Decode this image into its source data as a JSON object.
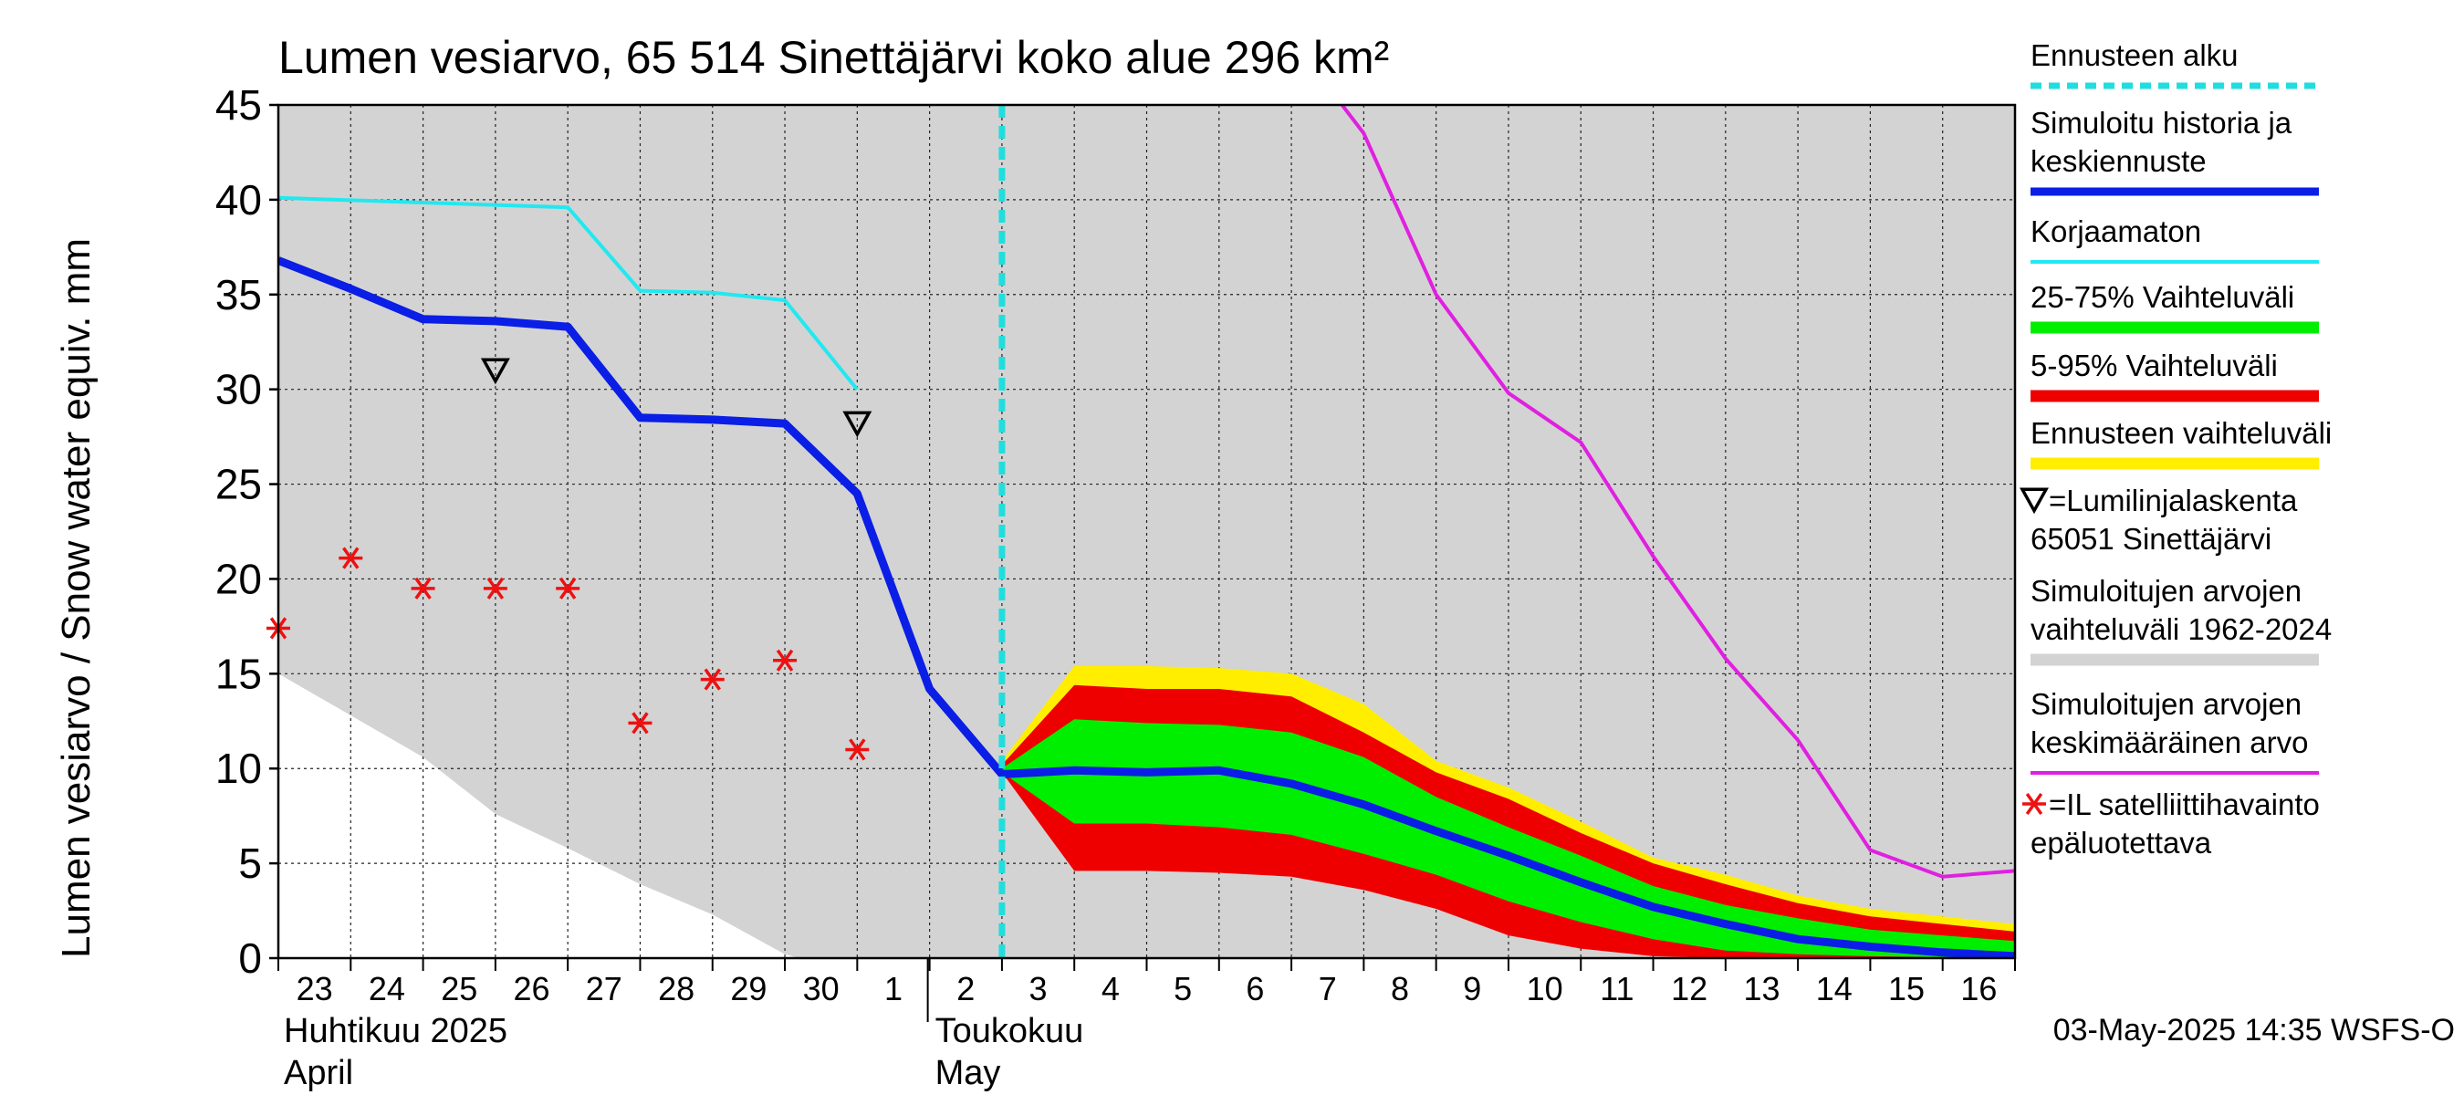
{
  "chart_data": {
    "type": "area",
    "title": "Lumen vesiarvo, 65 514 Sinettäjärvi koko alue 296 km²",
    "ylabel": "Lumen vesiarvo / Snow water equiv.    mm",
    "ylim": [
      0,
      45
    ],
    "yticks": [
      "0",
      "5",
      "10",
      "15",
      "20",
      "25",
      "30",
      "35",
      "40",
      "45"
    ],
    "x_days": [
      "23",
      "24",
      "25",
      "26",
      "27",
      "28",
      "29",
      "30",
      "1",
      "2",
      "3",
      "4",
      "5",
      "6",
      "7",
      "8",
      "9",
      "10",
      "11",
      "12",
      "13",
      "14",
      "15",
      "16"
    ],
    "month_labels": [
      {
        "fi": "Huhtikuu  2025",
        "en": "April",
        "day": 0
      },
      {
        "fi": "Toukokuu",
        "en": "May",
        "day": 9
      }
    ],
    "forecast_start_day": 10,
    "series": {
      "sim_range_upper": {
        "x": [
          0,
          24
        ],
        "y": [
          45,
          45
        ]
      },
      "sim_range_lower": {
        "x": [
          0,
          1,
          2,
          3,
          4,
          5,
          6,
          7,
          7.2
        ],
        "y": [
          15,
          12.8,
          10.6,
          7.6,
          5.8,
          3.9,
          2.3,
          0.2,
          0
        ]
      },
      "forecast_range": {
        "x": [
          10,
          11,
          12,
          13,
          14,
          15,
          16,
          17,
          18,
          19,
          20,
          21,
          22,
          23,
          24
        ],
        "upper": [
          10.4,
          15.4,
          15.4,
          15.3,
          15.0,
          13.4,
          10.4,
          9.0,
          7.2,
          5.3,
          4.4,
          3.3,
          2.6,
          2.2,
          1.8
        ],
        "lower": [
          9.8,
          4.8,
          4.8,
          4.7,
          4.4,
          3.8,
          2.8,
          1.5,
          0.7,
          0.2,
          0.0,
          0.0,
          0.0,
          0.0,
          0.0
        ]
      },
      "p5_95": {
        "x": [
          10,
          11,
          12,
          13,
          14,
          15,
          16,
          17,
          18,
          19,
          20,
          21,
          22,
          23,
          24
        ],
        "upper": [
          10.2,
          14.4,
          14.2,
          14.2,
          13.8,
          11.9,
          9.8,
          8.4,
          6.6,
          5.0,
          3.9,
          2.9,
          2.2,
          1.8,
          1.4
        ],
        "lower": [
          9.8,
          4.6,
          4.6,
          4.5,
          4.3,
          3.6,
          2.6,
          1.2,
          0.5,
          0.1,
          0.0,
          0.0,
          0.0,
          0.0,
          0.0
        ]
      },
      "p25_75": {
        "x": [
          10,
          11,
          12,
          13,
          14,
          15,
          16,
          17,
          18,
          19,
          20,
          21,
          22,
          23,
          24
        ],
        "upper": [
          10.0,
          12.6,
          12.4,
          12.3,
          11.9,
          10.6,
          8.5,
          6.9,
          5.4,
          3.8,
          2.8,
          2.1,
          1.5,
          1.2,
          0.9
        ],
        "lower": [
          9.8,
          7.1,
          7.1,
          6.9,
          6.5,
          5.5,
          4.4,
          3.0,
          1.9,
          1.0,
          0.4,
          0.2,
          0.1,
          0.05,
          0.0
        ]
      },
      "simulated": {
        "x": [
          0,
          1,
          2,
          3,
          4,
          5,
          6,
          7,
          8,
          9,
          10,
          11,
          12,
          13,
          14,
          15,
          16,
          17,
          18,
          19,
          20,
          21,
          22,
          23,
          24
        ],
        "y": [
          36.8,
          35.3,
          33.7,
          33.6,
          33.3,
          28.5,
          28.4,
          28.2,
          24.5,
          14.2,
          9.7,
          9.9,
          9.8,
          9.9,
          9.2,
          8.1,
          6.7,
          5.4,
          4.0,
          2.7,
          1.8,
          1.0,
          0.6,
          0.3,
          0.1
        ]
      },
      "uncorrected": {
        "x": [
          0,
          4,
          5,
          6,
          7,
          8
        ],
        "y": [
          40.1,
          39.6,
          35.2,
          35.1,
          34.7,
          30.0
        ]
      },
      "mean": {
        "x": [
          14.7,
          15,
          16,
          17,
          18,
          19,
          20,
          21,
          22,
          23,
          24
        ],
        "y": [
          45,
          43.5,
          35.0,
          29.8,
          27.2,
          21.2,
          15.8,
          11.5,
          5.7,
          4.3,
          4.6
        ]
      },
      "snow_course": {
        "x": [
          3,
          8
        ],
        "y": [
          31.0,
          28.2
        ]
      },
      "satellite": {
        "x": [
          0,
          1,
          2,
          3,
          4,
          5,
          6,
          7,
          8
        ],
        "y": [
          17.4,
          21.1,
          19.5,
          19.5,
          19.5,
          12.4,
          14.7,
          15.7,
          11.0
        ]
      }
    },
    "legend": [
      {
        "label": "Ennusteen alku",
        "color": "#22dddd",
        "style": "dashed"
      },
      {
        "label": "Simuloitu historia ja",
        "label2": "keskiennuste",
        "color": "#0a1ee6",
        "style": "thick"
      },
      {
        "label": "Korjaamaton",
        "color": "#22e8f0",
        "style": "line"
      },
      {
        "label": "25-75% Vaihteluväli",
        "color": "#00ee00",
        "style": "band"
      },
      {
        "label": "5-95% Vaihteluväli",
        "color": "#ee0000",
        "style": "band"
      },
      {
        "label": "Ennusteen vaihteluväli",
        "color": "#ffee00",
        "style": "band"
      },
      {
        "label": "=Lumilinjalaskenta",
        "label2": "65051 Sinettäjärvi",
        "style": "triangle"
      },
      {
        "label": "Simuloitujen arvojen",
        "label2": "vaihteluväli 1962-2024",
        "color": "#d3d3d3",
        "style": "band"
      },
      {
        "label": "Simuloitujen arvojen",
        "label2": "keskimääräinen arvo",
        "color": "#e020e0",
        "style": "line"
      },
      {
        "label": "=IL satelliittihavainto",
        "label2": "epäluotettava",
        "style": "star"
      }
    ],
    "footer": "03-May-2025 14:35 WSFS-O"
  },
  "colors": {
    "sim_range": "#d3d3d3",
    "forecast_range": "#ffee00",
    "p5_95": "#ee0000",
    "p25_75": "#00ee00",
    "simulated": "#0a1ee6",
    "uncorrected": "#22e8f0",
    "mean": "#e020e0",
    "forecast_start": "#22dddd",
    "satellite": "#ee1111"
  }
}
